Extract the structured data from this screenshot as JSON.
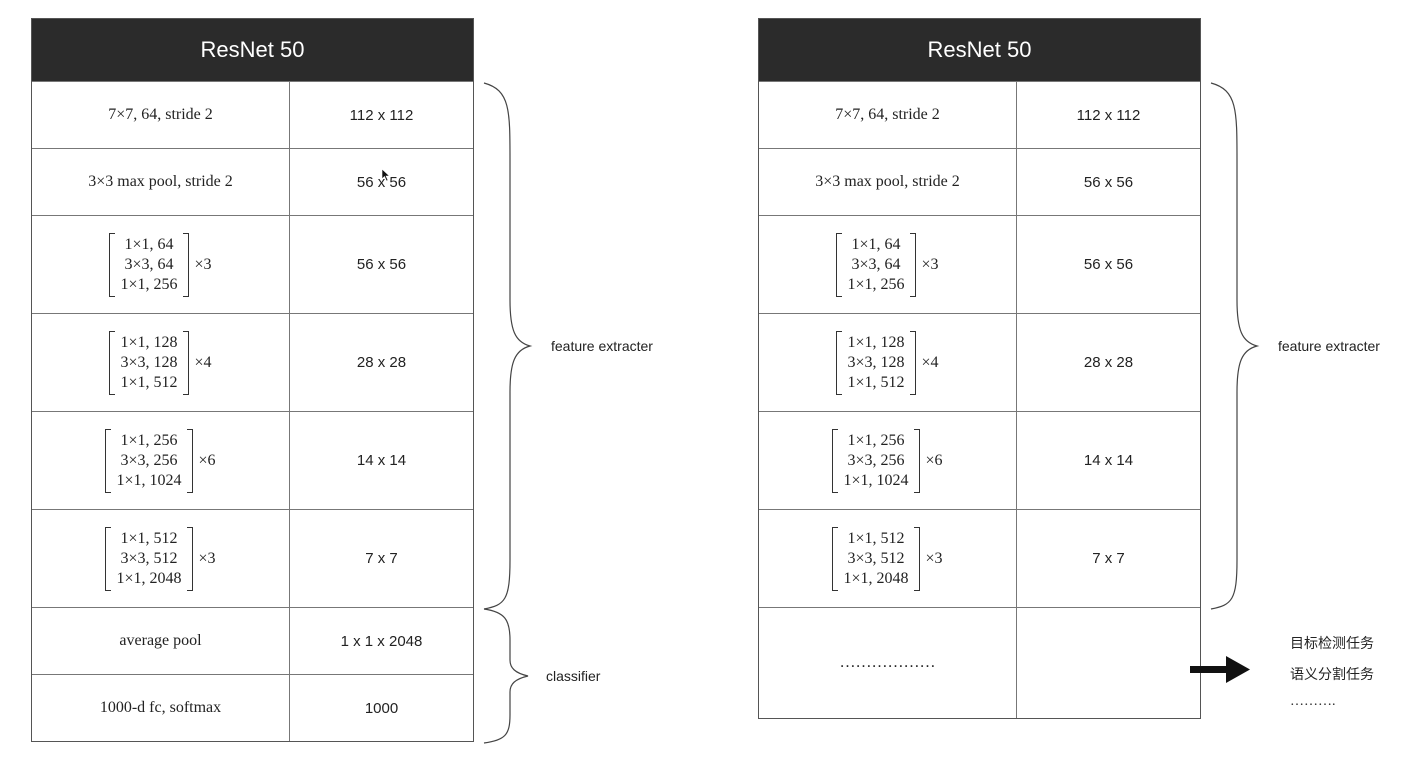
{
  "left_table": {
    "title": "ResNet 50",
    "rows": [
      {
        "kind": "text",
        "layer": "7×7, 64, stride 2",
        "size": "112 x 112"
      },
      {
        "kind": "text",
        "layer": "3×3 max pool, stride 2",
        "size": "56 x 56"
      },
      {
        "kind": "block",
        "lines": [
          "1×1, 64",
          "3×3, 64",
          "1×1, 256"
        ],
        "mult": "×3",
        "size": "56 x 56"
      },
      {
        "kind": "block",
        "lines": [
          "1×1, 128",
          "3×3, 128",
          "1×1, 512"
        ],
        "mult": "×4",
        "size": "28 x 28"
      },
      {
        "kind": "block",
        "lines": [
          "1×1, 256",
          "3×3, 256",
          "1×1, 1024"
        ],
        "mult": "×6",
        "size": "14 x 14"
      },
      {
        "kind": "block",
        "lines": [
          "1×1, 512",
          "3×3, 512",
          "1×1, 2048"
        ],
        "mult": "×3",
        "size": "7 x 7"
      },
      {
        "kind": "text",
        "layer": "average pool",
        "size": "1 x 1 x 2048"
      },
      {
        "kind": "text",
        "layer": "1000-d fc, softmax",
        "size": "1000"
      }
    ]
  },
  "right_table": {
    "title": "ResNet 50",
    "rows": [
      {
        "kind": "text",
        "layer": "7×7, 64, stride 2",
        "size": "112 x 112"
      },
      {
        "kind": "text",
        "layer": "3×3 max pool, stride 2",
        "size": "56 x 56"
      },
      {
        "kind": "block",
        "lines": [
          "1×1, 64",
          "3×3, 64",
          "1×1, 256"
        ],
        "mult": "×3",
        "size": "56 x 56"
      },
      {
        "kind": "block",
        "lines": [
          "1×1, 128",
          "3×3, 128",
          "1×1, 512"
        ],
        "mult": "×4",
        "size": "28 x 28"
      },
      {
        "kind": "block",
        "lines": [
          "1×1, 256",
          "3×3, 256",
          "1×1, 1024"
        ],
        "mult": "×6",
        "size": "14 x 14"
      },
      {
        "kind": "block",
        "lines": [
          "1×1, 512",
          "3×3, 512",
          "1×1, 2048"
        ],
        "mult": "×3",
        "size": "7 x 7"
      },
      {
        "kind": "text",
        "layer": "………………",
        "size": ""
      }
    ]
  },
  "annotations": {
    "feature_extracter_left": "feature extracter",
    "classifier_left": "classifier",
    "feature_extracter_right": "feature extracter",
    "tasks": [
      "目标检测任务",
      "语义分割任务",
      "………."
    ]
  }
}
